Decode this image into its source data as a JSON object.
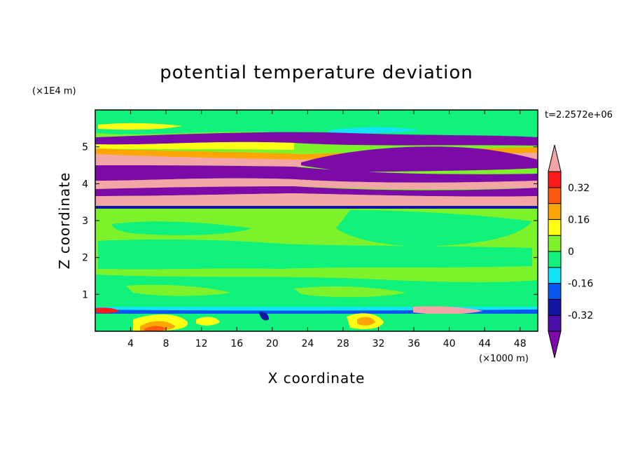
{
  "chart_data": {
    "type": "heatmap",
    "title": "potential temperature deviation",
    "xlabel": "X coordinate",
    "ylabel": "Z coordinate",
    "x_unit": "(×1000 m)",
    "y_unit": "(×1E4 m)",
    "time_label": "t=2.2572e+06",
    "xlim": [
      0,
      50
    ],
    "ylim": [
      0,
      6
    ],
    "x_ticks": [
      "4",
      "8",
      "12",
      "16",
      "20",
      "24",
      "28",
      "32",
      "36",
      "40",
      "44",
      "48"
    ],
    "y_ticks": [
      "1",
      "2",
      "3",
      "4",
      "5"
    ],
    "colorbar": {
      "labels": [
        "0.32",
        "0.16",
        "0",
        "-0.16",
        "-0.32"
      ],
      "level_colors": [
        "#7b0aa9",
        "#4a0ea8",
        "#1515a3",
        "#0a57f0",
        "#11e5f5",
        "#10f27c",
        "#7df22b",
        "#ffff14",
        "#ffa505",
        "#ff5a10",
        "#ff1a1a",
        "#f4a6a6"
      ]
    }
  }
}
